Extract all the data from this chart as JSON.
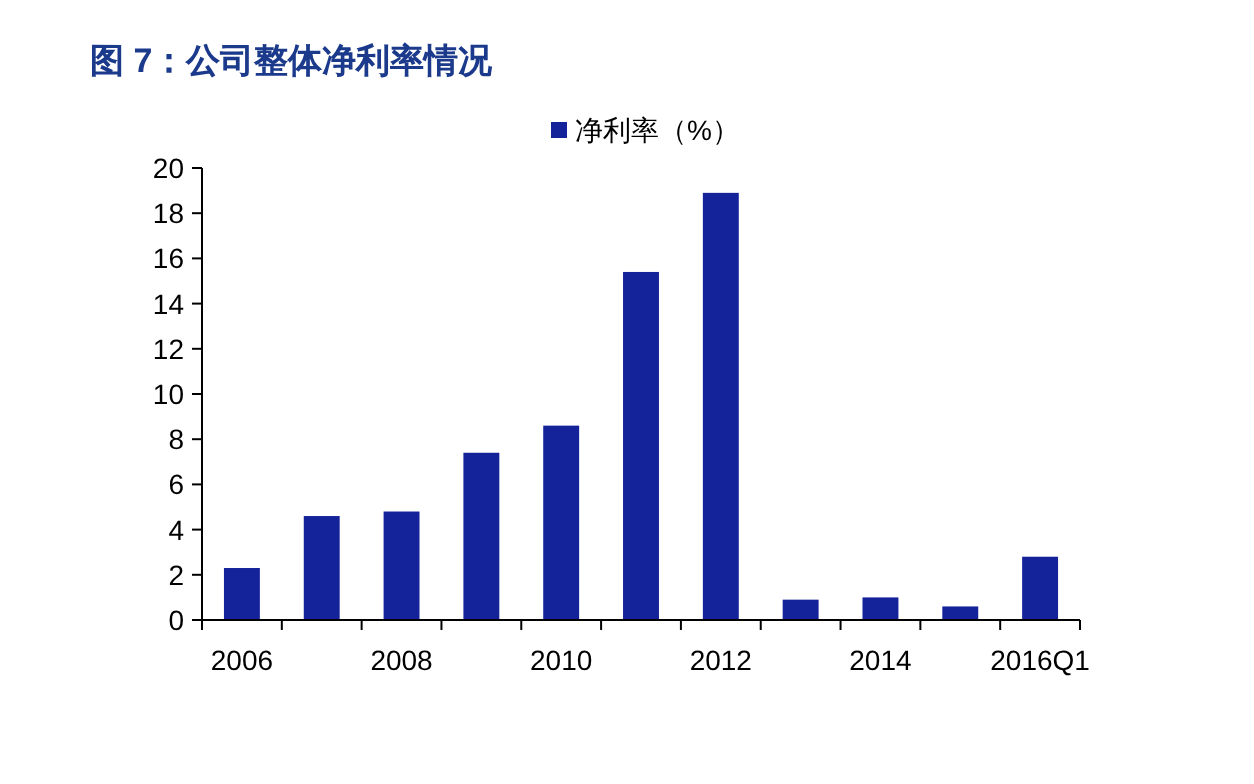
{
  "chart_data": {
    "type": "bar",
    "title": "图 7：公司整体净利率情况",
    "categories": [
      "2006",
      null,
      "2008",
      null,
      "2010",
      null,
      "2012",
      null,
      "2014",
      null,
      "2016Q1"
    ],
    "series": [
      {
        "name": "净利率（%）",
        "color": "#14239a",
        "values": [
          2.3,
          4.6,
          4.8,
          7.4,
          8.6,
          15.4,
          18.9,
          0.9,
          1.0,
          0.6,
          2.8
        ]
      }
    ],
    "ylim": [
      0,
      20
    ],
    "yticks": [
      0,
      2,
      4,
      6,
      8,
      10,
      12,
      14,
      16,
      18,
      20
    ],
    "grid": false,
    "legend": "top"
  }
}
